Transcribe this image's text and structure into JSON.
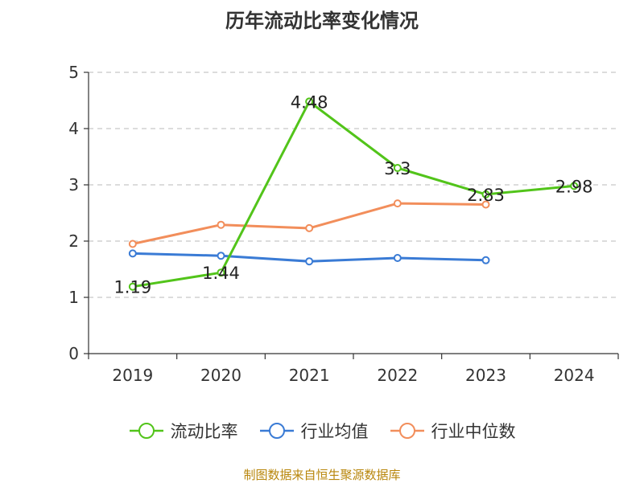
{
  "chart_data": {
    "type": "line",
    "title": "历年流动比率变化情况",
    "categories": [
      "2019",
      "2020",
      "2021",
      "2022",
      "2023",
      "2024"
    ],
    "ylim": [
      0,
      5
    ],
    "yticks": [
      "0",
      "1",
      "2",
      "3",
      "4",
      "5"
    ],
    "grid": true,
    "legend_position": "bottom",
    "series": [
      {
        "name": "流动比率",
        "color": "#52c41a",
        "values": [
          1.19,
          1.44,
          4.48,
          3.3,
          2.83,
          2.98
        ],
        "labels": [
          "1.19",
          "1.44",
          "4.48",
          "3.3",
          "2.83",
          "2.98"
        ]
      },
      {
        "name": "行业均值",
        "color": "#3a7bd5",
        "values": [
          1.78,
          1.74,
          1.64,
          1.7,
          1.66,
          null
        ]
      },
      {
        "name": "行业中位数",
        "color": "#f28e5b",
        "values": [
          1.95,
          2.29,
          2.23,
          2.67,
          2.65,
          null
        ]
      }
    ]
  },
  "source_text": "制图数据来自恒生聚源数据库"
}
